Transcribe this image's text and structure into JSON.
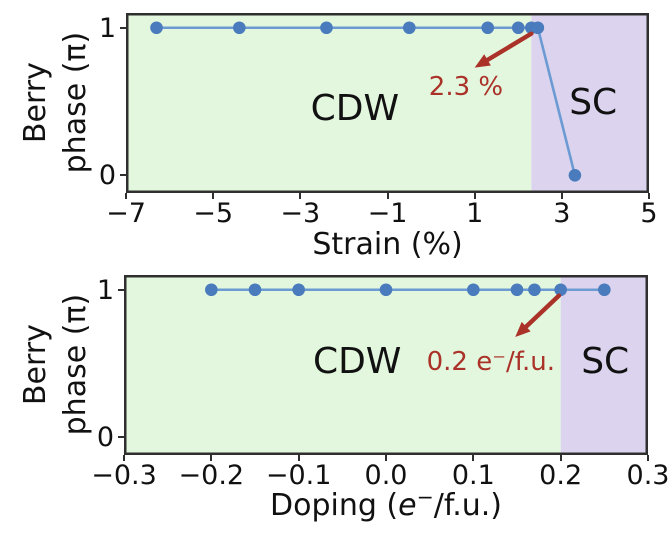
{
  "colors": {
    "background": "#ffffff",
    "cdw_region": "#e2f7de",
    "sc_region": "#dcd4ee",
    "line": "#6b9bd2",
    "marker": "#4a7bbd",
    "annotation": "#ab3228",
    "axis": "#2f2f2f",
    "text": "#111111"
  },
  "chart_data": [
    {
      "type": "line",
      "title": "",
      "xlabel": "Strain (%)",
      "xlabel_parts": [
        {
          "t": "Strain (%)"
        }
      ],
      "ylabel": "Berry phase (π)",
      "ylabel_lines": [
        "Berry",
        "phase (π)"
      ],
      "xlim": [
        -7,
        5
      ],
      "ylim": [
        -0.12,
        1.1
      ],
      "grid": false,
      "xticks": [
        {
          "v": -7,
          "label": "−7"
        },
        {
          "v": -5,
          "label": "−5"
        },
        {
          "v": -3,
          "label": "−3"
        },
        {
          "v": -1,
          "label": "−1"
        },
        {
          "v": 1,
          "label": "1"
        },
        {
          "v": 3,
          "label": "3"
        },
        {
          "v": 5,
          "label": "5"
        }
      ],
      "yticks": [
        {
          "v": 1,
          "label": "1"
        },
        {
          "v": 0,
          "label": "0"
        }
      ],
      "series": [
        {
          "name": "berry-phase-vs-strain",
          "x": [
            -6.3,
            -4.4,
            -2.4,
            -0.5,
            1.3,
            2.0,
            2.3,
            2.45,
            3.3
          ],
          "y": [
            1,
            1,
            1,
            1,
            1,
            1,
            1,
            1,
            0
          ]
        }
      ],
      "regions": [
        {
          "label": "CDW",
          "from": -7,
          "to": 2.3,
          "color_key": "cdw_region",
          "label_at": [
            -1.75,
            0.45
          ]
        },
        {
          "label": "SC",
          "from": 2.3,
          "to": 5,
          "color_key": "sc_region",
          "label_at": [
            3.72,
            0.49
          ]
        }
      ],
      "annotations": [
        {
          "text": "2.3 %",
          "at": [
            0.8,
            0.6
          ],
          "arrow_from": [
            2.3,
            0.96
          ],
          "arrow_to": [
            1.0,
            0.73
          ]
        }
      ]
    },
    {
      "type": "line",
      "title": "",
      "xlabel": "Doping (e−/f.u.)",
      "xlabel_parts": [
        {
          "t": "Doping ("
        },
        {
          "t": "e",
          "style": "italic"
        },
        {
          "t": "−",
          "style": "sup"
        },
        {
          "t": "/f.u.)"
        }
      ],
      "ylabel": "Berry phase (π)",
      "ylabel_lines": [
        "Berry",
        "phase (π)"
      ],
      "xlim": [
        -0.3,
        0.3
      ],
      "ylim": [
        -0.12,
        1.1
      ],
      "grid": false,
      "xticks": [
        {
          "v": -0.3,
          "label": "−0.3"
        },
        {
          "v": -0.2,
          "label": "−0.2"
        },
        {
          "v": -0.1,
          "label": "−0.1"
        },
        {
          "v": 0.0,
          "label": "0.0"
        },
        {
          "v": 0.1,
          "label": "0.1"
        },
        {
          "v": 0.2,
          "label": "0.2"
        },
        {
          "v": 0.3,
          "label": "0.3"
        }
      ],
      "yticks": [
        {
          "v": 1,
          "label": "1"
        },
        {
          "v": 0,
          "label": "0"
        }
      ],
      "series": [
        {
          "name": "berry-phase-vs-doping",
          "x": [
            -0.2,
            -0.15,
            -0.1,
            0.0,
            0.1,
            0.15,
            0.17,
            0.2,
            0.25
          ],
          "y": [
            1,
            1,
            1,
            1,
            1,
            1,
            1,
            1,
            1
          ]
        }
      ],
      "regions": [
        {
          "label": "CDW",
          "from": -0.3,
          "to": 0.2,
          "color_key": "cdw_region",
          "label_at": [
            -0.033,
            0.51
          ]
        },
        {
          "label": "SC",
          "from": 0.2,
          "to": 0.3,
          "color_key": "sc_region",
          "label_at": [
            0.251,
            0.51
          ]
        }
      ],
      "annotations": [
        {
          "text": "0.2 e⁻/f.u.",
          "at": [
            0.12,
            0.51
          ],
          "arrow_from": [
            0.198,
            0.96
          ],
          "arrow_to": [
            0.148,
            0.68
          ]
        }
      ]
    }
  ]
}
